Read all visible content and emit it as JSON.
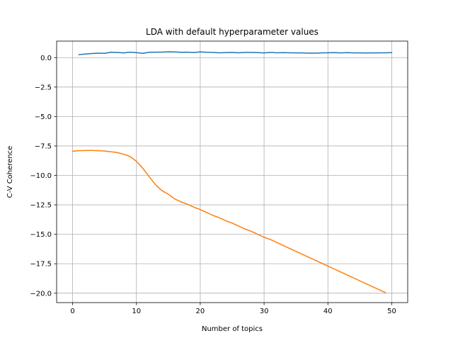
{
  "chart_data": {
    "type": "line",
    "title": "LDA with default hyperparameter values",
    "xlabel": "Number of topics",
    "ylabel": "C-V Coherence",
    "xlim": [
      -2.5,
      52.5
    ],
    "ylim": [
      -20.8,
      1.4
    ],
    "xticks": [
      0,
      10,
      20,
      30,
      40,
      50
    ],
    "xtick_labels": [
      "0",
      "10",
      "20",
      "30",
      "40",
      "50"
    ],
    "yticks": [
      0.0,
      -2.5,
      -5.0,
      -7.5,
      -10.0,
      -12.5,
      -15.0,
      -17.5,
      -20.0
    ],
    "ytick_labels": [
      "0.0",
      "−2.5",
      "−5.0",
      "−7.5",
      "−10.0",
      "−12.5",
      "−15.0",
      "−17.5",
      "−20.0"
    ],
    "grid": true,
    "legend": "none",
    "series": [
      {
        "color": "#1f77b4",
        "x": [
          1,
          2,
          3,
          4,
          5,
          6,
          7,
          8,
          9,
          10,
          11,
          12,
          13,
          14,
          15,
          16,
          17,
          18,
          19,
          20,
          21,
          22,
          23,
          24,
          25,
          26,
          27,
          28,
          29,
          30,
          31,
          32,
          33,
          34,
          35,
          36,
          37,
          38,
          39,
          40,
          41,
          42,
          43,
          44,
          45,
          46,
          47,
          48,
          49,
          50
        ],
        "values": [
          0.25,
          0.3,
          0.35,
          0.38,
          0.36,
          0.45,
          0.44,
          0.4,
          0.46,
          0.42,
          0.36,
          0.45,
          0.46,
          0.47,
          0.49,
          0.48,
          0.45,
          0.46,
          0.43,
          0.48,
          0.45,
          0.44,
          0.41,
          0.42,
          0.44,
          0.41,
          0.44,
          0.44,
          0.42,
          0.4,
          0.44,
          0.41,
          0.42,
          0.41,
          0.4,
          0.4,
          0.38,
          0.38,
          0.4,
          0.41,
          0.42,
          0.4,
          0.42,
          0.4,
          0.4,
          0.39,
          0.4,
          0.4,
          0.41,
          0.42
        ]
      },
      {
        "color": "#ff7f0e",
        "x": [
          0,
          1,
          2,
          3,
          4,
          5,
          6,
          7,
          8,
          9,
          10,
          11,
          12,
          13,
          14,
          15,
          16,
          17,
          18,
          19,
          20,
          21,
          22,
          23,
          24,
          25,
          26,
          27,
          28,
          29,
          30,
          31,
          32,
          33,
          34,
          35,
          36,
          37,
          38,
          39,
          40,
          41,
          42,
          43,
          44,
          45,
          46,
          47,
          48,
          49
        ],
        "values": [
          -7.95,
          -7.9,
          -7.89,
          -7.88,
          -7.9,
          -7.93,
          -7.99,
          -8.06,
          -8.2,
          -8.4,
          -8.8,
          -9.4,
          -10.1,
          -10.8,
          -11.3,
          -11.6,
          -12.0,
          -12.25,
          -12.45,
          -12.7,
          -12.9,
          -13.15,
          -13.4,
          -13.6,
          -13.85,
          -14.05,
          -14.3,
          -14.55,
          -14.75,
          -15.0,
          -15.25,
          -15.45,
          -15.7,
          -15.95,
          -16.2,
          -16.45,
          -16.7,
          -16.95,
          -17.2,
          -17.45,
          -17.7,
          -17.95,
          -18.2,
          -18.45,
          -18.7,
          -18.95,
          -19.2,
          -19.45,
          -19.7,
          -19.95
        ]
      }
    ]
  }
}
